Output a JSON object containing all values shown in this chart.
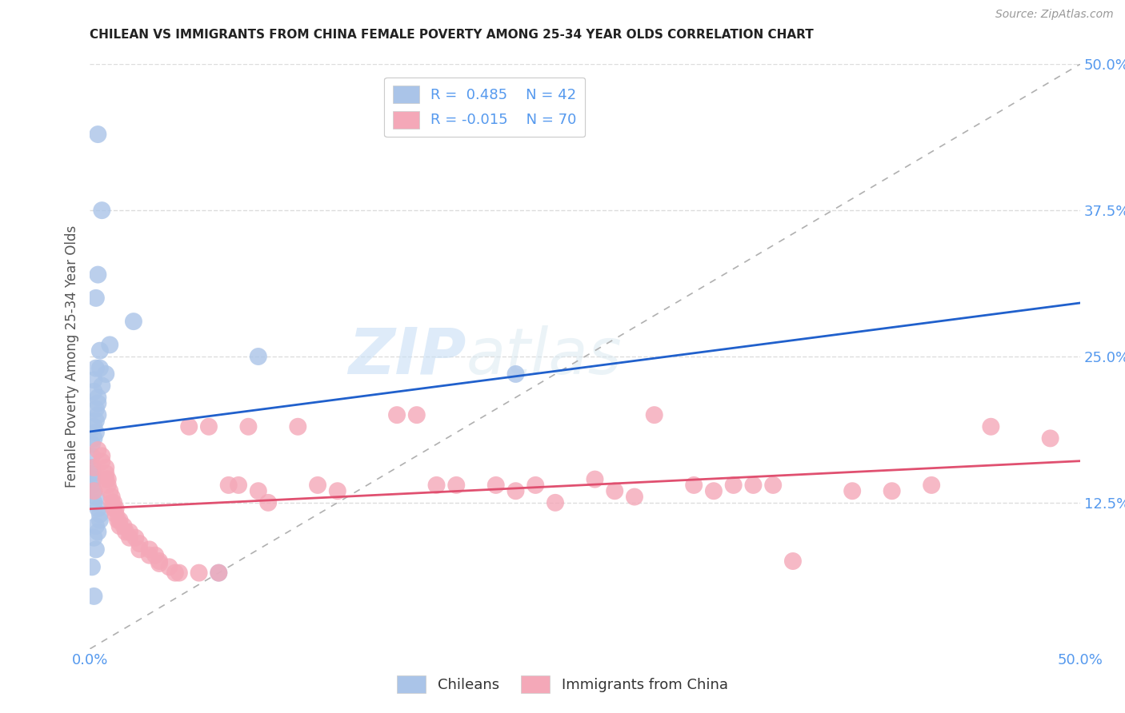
{
  "title": "CHILEAN VS IMMIGRANTS FROM CHINA FEMALE POVERTY AMONG 25-34 YEAR OLDS CORRELATION CHART",
  "source": "Source: ZipAtlas.com",
  "ylabel": "Female Poverty Among 25-34 Year Olds",
  "xlabel_chileans": "Chileans",
  "xlabel_immigrants": "Immigrants from China",
  "xlim": [
    0,
    0.5
  ],
  "ylim": [
    0,
    0.5
  ],
  "blue_R": 0.485,
  "blue_N": 42,
  "pink_R": -0.015,
  "pink_N": 70,
  "blue_color": "#aac4e8",
  "pink_color": "#f4a8b8",
  "blue_line_color": "#2060cc",
  "pink_line_color": "#e05070",
  "blue_scatter": [
    [
      0.004,
      0.44
    ],
    [
      0.006,
      0.375
    ],
    [
      0.004,
      0.32
    ],
    [
      0.003,
      0.3
    ],
    [
      0.022,
      0.28
    ],
    [
      0.01,
      0.26
    ],
    [
      0.005,
      0.255
    ],
    [
      0.005,
      0.24
    ],
    [
      0.003,
      0.24
    ],
    [
      0.008,
      0.235
    ],
    [
      0.002,
      0.23
    ],
    [
      0.006,
      0.225
    ],
    [
      0.085,
      0.25
    ],
    [
      0.002,
      0.22
    ],
    [
      0.004,
      0.215
    ],
    [
      0.004,
      0.21
    ],
    [
      0.003,
      0.205
    ],
    [
      0.004,
      0.2
    ],
    [
      0.003,
      0.195
    ],
    [
      0.002,
      0.19
    ],
    [
      0.003,
      0.185
    ],
    [
      0.002,
      0.18
    ],
    [
      0.215,
      0.235
    ],
    [
      0.001,
      0.175
    ],
    [
      0.001,
      0.165
    ],
    [
      0.001,
      0.155
    ],
    [
      0.001,
      0.15
    ],
    [
      0.001,
      0.145
    ],
    [
      0.001,
      0.14
    ],
    [
      0.002,
      0.135
    ],
    [
      0.003,
      0.13
    ],
    [
      0.002,
      0.125
    ],
    [
      0.004,
      0.12
    ],
    [
      0.005,
      0.115
    ],
    [
      0.005,
      0.11
    ],
    [
      0.003,
      0.105
    ],
    [
      0.004,
      0.1
    ],
    [
      0.002,
      0.095
    ],
    [
      0.003,
      0.085
    ],
    [
      0.001,
      0.07
    ],
    [
      0.065,
      0.065
    ],
    [
      0.002,
      0.045
    ]
  ],
  "pink_scatter": [
    [
      0.002,
      0.155
    ],
    [
      0.002,
      0.135
    ],
    [
      0.004,
      0.17
    ],
    [
      0.006,
      0.165
    ],
    [
      0.006,
      0.16
    ],
    [
      0.008,
      0.155
    ],
    [
      0.008,
      0.15
    ],
    [
      0.008,
      0.145
    ],
    [
      0.009,
      0.145
    ],
    [
      0.009,
      0.14
    ],
    [
      0.01,
      0.135
    ],
    [
      0.011,
      0.13
    ],
    [
      0.011,
      0.125
    ],
    [
      0.012,
      0.125
    ],
    [
      0.012,
      0.12
    ],
    [
      0.013,
      0.12
    ],
    [
      0.013,
      0.115
    ],
    [
      0.014,
      0.11
    ],
    [
      0.015,
      0.11
    ],
    [
      0.015,
      0.105
    ],
    [
      0.017,
      0.105
    ],
    [
      0.018,
      0.1
    ],
    [
      0.02,
      0.1
    ],
    [
      0.02,
      0.095
    ],
    [
      0.023,
      0.095
    ],
    [
      0.025,
      0.09
    ],
    [
      0.025,
      0.085
    ],
    [
      0.03,
      0.085
    ],
    [
      0.03,
      0.08
    ],
    [
      0.033,
      0.08
    ],
    [
      0.035,
      0.075
    ],
    [
      0.035,
      0.073
    ],
    [
      0.04,
      0.07
    ],
    [
      0.043,
      0.065
    ],
    [
      0.045,
      0.065
    ],
    [
      0.05,
      0.19
    ],
    [
      0.055,
      0.065
    ],
    [
      0.06,
      0.19
    ],
    [
      0.065,
      0.065
    ],
    [
      0.07,
      0.14
    ],
    [
      0.075,
      0.14
    ],
    [
      0.08,
      0.19
    ],
    [
      0.085,
      0.135
    ],
    [
      0.09,
      0.125
    ],
    [
      0.105,
      0.19
    ],
    [
      0.115,
      0.14
    ],
    [
      0.125,
      0.135
    ],
    [
      0.155,
      0.2
    ],
    [
      0.165,
      0.2
    ],
    [
      0.175,
      0.14
    ],
    [
      0.185,
      0.14
    ],
    [
      0.205,
      0.14
    ],
    [
      0.215,
      0.135
    ],
    [
      0.225,
      0.14
    ],
    [
      0.235,
      0.125
    ],
    [
      0.255,
      0.145
    ],
    [
      0.265,
      0.135
    ],
    [
      0.275,
      0.13
    ],
    [
      0.285,
      0.2
    ],
    [
      0.305,
      0.14
    ],
    [
      0.315,
      0.135
    ],
    [
      0.325,
      0.14
    ],
    [
      0.335,
      0.14
    ],
    [
      0.345,
      0.14
    ],
    [
      0.355,
      0.075
    ],
    [
      0.385,
      0.135
    ],
    [
      0.405,
      0.135
    ],
    [
      0.425,
      0.14
    ],
    [
      0.455,
      0.19
    ],
    [
      0.485,
      0.18
    ]
  ],
  "watermark_zip": "ZIP",
  "watermark_atlas": "atlas",
  "background_color": "#ffffff",
  "grid_color": "#dddddd",
  "tick_color": "#5599ee",
  "axis_label_color": "#555555"
}
